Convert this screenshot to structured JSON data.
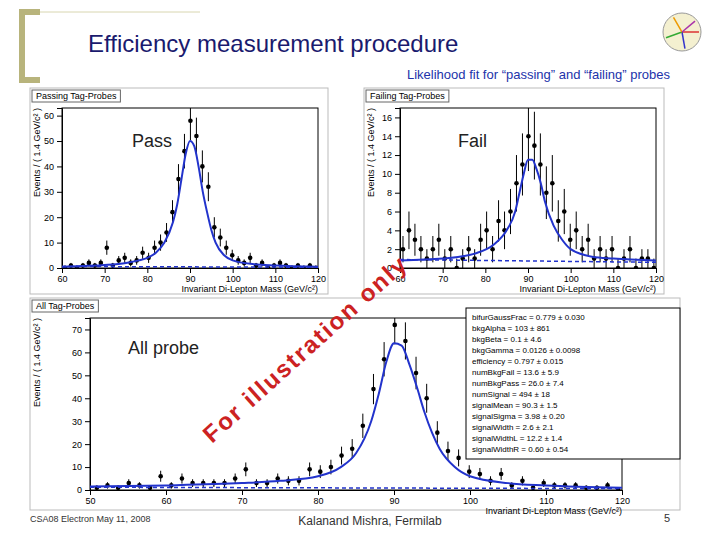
{
  "slide": {
    "title": "Efficiency measurement procedure",
    "subtitle": "Likelihood fit for “passing” and “failing” probes",
    "watermark": "For illustration only",
    "footer_left": "CSA08 Electron   May 11, 2008",
    "footer_center": "Kalanand Mishra, Fermilab",
    "page": "5"
  },
  "chart_data": [
    {
      "type": "scatter",
      "title": "Passing Tag-Probes",
      "label": "Pass",
      "x_label": "Invariant Di-Lepton Mass (GeV/c²)",
      "y_label": "Events / ( 1.4 GeV/c² )",
      "xlim": [
        60,
        120
      ],
      "xticks": [
        60,
        70,
        80,
        90,
        100,
        110,
        120
      ],
      "ylim": [
        0,
        63
      ],
      "yticks": [
        0,
        10,
        20,
        30,
        40,
        50,
        60
      ],
      "series": [
        {
          "type": "scatter",
          "marker": "circle",
          "color": "#000000",
          "x": [
            60.7,
            62.1,
            63.5,
            64.9,
            66.3,
            67.7,
            69.1,
            70.5,
            71.9,
            73.3,
            74.7,
            76.1,
            77.5,
            78.9,
            80.3,
            81.7,
            83.1,
            84.5,
            85.9,
            87.3,
            88.7,
            90.1,
            91.5,
            92.9,
            94.3,
            95.7,
            97.1,
            98.5,
            99.9,
            101.3,
            102.7,
            104.1,
            105.5,
            106.9,
            108.3,
            109.7,
            111.1,
            112.5,
            113.9,
            115.3,
            116.7,
            118.1,
            119.5
          ],
          "values": [
            0,
            1,
            0,
            1,
            2,
            1,
            2,
            8,
            1,
            3,
            4,
            2,
            3,
            6,
            4,
            8,
            10,
            14,
            22,
            35,
            46,
            58,
            52,
            40,
            32,
            16,
            12,
            8,
            5,
            3,
            2,
            4,
            1,
            2,
            0,
            1,
            2,
            1,
            0,
            1,
            0,
            1,
            0
          ],
          "errors": [
            1,
            1,
            1,
            1,
            1.4,
            1,
            1.4,
            2.8,
            1,
            1.7,
            2,
            1.4,
            1.7,
            2.4,
            2,
            2.8,
            3.2,
            3.7,
            4.7,
            5.9,
            6.8,
            7.6,
            7.2,
            6.3,
            5.7,
            4,
            3.5,
            2.8,
            2.2,
            1.7,
            1.4,
            2,
            1,
            1.4,
            1,
            1,
            1.4,
            1,
            1,
            1,
            1,
            1,
            1
          ]
        },
        {
          "type": "line",
          "line_style": "solid",
          "color": "#2233cc",
          "x": [
            60,
            65,
            70,
            75,
            78,
            80,
            82,
            84,
            86,
            87,
            88,
            89,
            90,
            91,
            92,
            93,
            94,
            95,
            96,
            98,
            100,
            105,
            110,
            120
          ],
          "values": [
            0.5,
            0.8,
            1.2,
            2,
            3,
            4,
            6,
            10,
            18,
            25,
            35,
            45,
            50,
            48,
            40,
            30,
            22,
            15,
            10,
            5,
            3,
            1.5,
            1,
            0.5
          ]
        },
        {
          "type": "line",
          "line_style": "dashed",
          "color": "#2233cc",
          "x": [
            60,
            120
          ],
          "values": [
            0.6,
            0.3
          ]
        }
      ]
    },
    {
      "type": "scatter",
      "title": "Failing Tag-Probes",
      "label": "Fail",
      "x_label": "Invariant Di-Lepton Mass (GeV/c²)",
      "y_label": "Events / ( 1.4 GeV/c² )",
      "xlim": [
        60,
        120
      ],
      "xticks": [
        60,
        70,
        80,
        90,
        100,
        110,
        120
      ],
      "ylim": [
        0,
        17
      ],
      "yticks": [
        0,
        2,
        4,
        6,
        8,
        10,
        12,
        14,
        16
      ],
      "series": [
        {
          "type": "scatter",
          "marker": "circle",
          "color": "#000000",
          "x": [
            60.7,
            62.1,
            63.5,
            64.9,
            66.3,
            67.7,
            69.1,
            70.5,
            71.9,
            73.3,
            74.7,
            76.1,
            77.5,
            78.9,
            80.3,
            81.7,
            83.1,
            84.5,
            85.9,
            87.3,
            88.7,
            90.1,
            91.5,
            92.9,
            94.3,
            95.7,
            97.1,
            98.5,
            99.9,
            101.3,
            102.7,
            104.1,
            105.5,
            106.9,
            108.3,
            109.7,
            111.1,
            112.5,
            113.9,
            115.3,
            116.7,
            118.1,
            119.5
          ],
          "values": [
            2,
            4,
            3,
            2,
            1,
            2,
            3,
            1,
            2,
            0,
            1,
            2,
            1,
            3,
            4,
            2,
            5,
            4,
            6,
            9,
            11,
            14,
            13,
            11,
            8,
            9,
            5,
            6,
            3,
            4,
            2,
            3,
            1,
            2,
            1,
            2,
            0,
            1,
            2,
            0,
            1,
            1,
            0
          ],
          "errors": [
            1.4,
            2,
            1.7,
            1.4,
            1,
            1.4,
            1.7,
            1,
            1.4,
            1,
            1,
            1.4,
            1,
            1.7,
            2,
            1.4,
            2.2,
            2,
            2.4,
            3,
            3.3,
            3.7,
            3.6,
            3.3,
            2.8,
            3,
            2.2,
            2.4,
            1.7,
            2,
            1.4,
            1.7,
            1,
            1.4,
            1,
            1.4,
            1,
            1,
            1.4,
            1,
            1,
            1,
            1
          ]
        },
        {
          "type": "line",
          "line_style": "solid",
          "color": "#2233cc",
          "x": [
            60,
            70,
            78,
            82,
            85,
            87,
            88,
            89,
            90,
            91,
            92,
            93,
            94,
            96,
            98,
            100,
            105,
            110,
            120
          ],
          "values": [
            0.8,
            1,
            1.6,
            2.5,
            4,
            6,
            8,
            10,
            11.5,
            11.5,
            10.5,
            9,
            7,
            4.5,
            3,
            2,
            1.2,
            1,
            0.8
          ]
        },
        {
          "type": "line",
          "line_style": "dashed",
          "color": "#2233cc",
          "x": [
            60,
            120
          ],
          "values": [
            0.9,
            0.6
          ]
        }
      ]
    },
    {
      "type": "scatter",
      "title": "All Tag-Probes",
      "label": "All probe",
      "x_label": "Invariant Di-Lepton Mass (GeV/c²)",
      "y_label": "Events / ( 1.4 GeV/c² )",
      "xlim": [
        50,
        120
      ],
      "xticks": [
        50,
        60,
        70,
        80,
        90,
        100,
        110,
        120
      ],
      "ylim": [
        0,
        75
      ],
      "yticks": [
        0,
        10,
        20,
        30,
        40,
        50,
        60,
        70
      ],
      "annotations": [
        "bifurGaussFrac = 0.779 ± 0.030",
        "bkgAlpha = 103 ± 861",
        "bkgBeta = 0.1 ± 4.6",
        "bkgGamma = 0.0126 ± 0.0098",
        "efficiency = 0.797 ± 0.015",
        "numBkgFail = 13.6 ± 5.9",
        "numBkgPass = 26.0 ± 7.4",
        "numSignal = 494 ± 18",
        "signalMean = 90.3 ± 1.5",
        "signalSigma = 3.98 ± 0.20",
        "signalWidth = 2.6 ± 2.1",
        "signalWidthL = 12.2 ± 1.4",
        "signalWidthR = 0.60 ± 0.54"
      ],
      "series": [
        {
          "type": "scatter",
          "marker": "circle",
          "color": "#000000",
          "x": [
            50.9,
            52.3,
            53.7,
            55.1,
            56.5,
            57.9,
            59.3,
            60.7,
            62.1,
            63.5,
            64.9,
            66.3,
            67.7,
            69.1,
            70.5,
            71.9,
            73.3,
            74.7,
            76.1,
            77.5,
            78.9,
            80.3,
            81.7,
            83.1,
            84.5,
            85.9,
            87.3,
            88.7,
            90.1,
            91.5,
            92.9,
            94.3,
            95.7,
            97.1,
            98.5,
            99.9,
            101.3,
            102.7,
            104.1,
            105.5,
            106.9,
            108.3,
            109.7,
            111.1,
            112.5,
            113.9,
            115.3,
            116.7,
            118.1,
            119.5
          ],
          "values": [
            1,
            2,
            1,
            3,
            2,
            1,
            6,
            2,
            5,
            3,
            3,
            3,
            3,
            5,
            9,
            3,
            3,
            5,
            4,
            4,
            9,
            8,
            10,
            15,
            18,
            28,
            44,
            57,
            72,
            65,
            51,
            40,
            25,
            17,
            14,
            8,
            7,
            4,
            7,
            2,
            4,
            1,
            3,
            2,
            2,
            2,
            1,
            1,
            2,
            0
          ],
          "errors": [
            1,
            1.4,
            1,
            1.7,
            1.4,
            1,
            2.4,
            1.4,
            2.2,
            1.7,
            1.7,
            1.7,
            1.7,
            2.2,
            3,
            1.7,
            1.7,
            2.2,
            2,
            2,
            3,
            2.8,
            3.2,
            3.9,
            4.2,
            5.3,
            6.6,
            7.5,
            8.5,
            8.1,
            7.1,
            6.3,
            5,
            4.1,
            3.7,
            2.8,
            2.6,
            2,
            2.6,
            1.4,
            2,
            1,
            1.7,
            1.4,
            1.4,
            1.4,
            1,
            1,
            1.4,
            1
          ]
        },
        {
          "type": "line",
          "line_style": "solid",
          "color": "#2233cc",
          "x": [
            50,
            60,
            70,
            75,
            80,
            83,
            85,
            87,
            88,
            89,
            90,
            91,
            92,
            93,
            94,
            95,
            96,
            98,
            100,
            105,
            110,
            120
          ],
          "values": [
            1.5,
            2,
            3,
            4,
            6,
            10,
            16,
            30,
            42,
            56,
            64,
            63,
            55,
            45,
            34,
            25,
            18,
            10,
            6,
            3,
            2,
            1
          ]
        },
        {
          "type": "line",
          "line_style": "dashed",
          "color": "#2233cc",
          "x": [
            50,
            120
          ],
          "values": [
            1.2,
            0.6
          ]
        }
      ]
    }
  ]
}
